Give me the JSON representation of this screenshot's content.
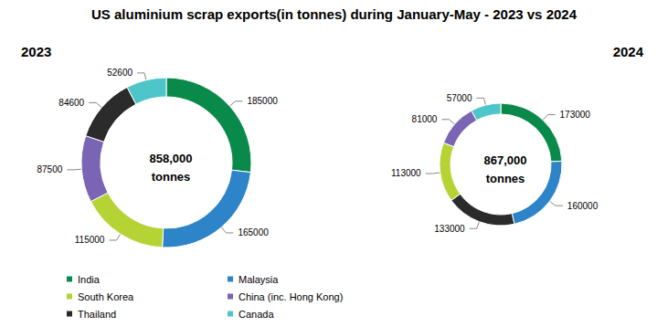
{
  "title": "US aluminium scrap exports(in tonnes) during January-May - 2023 vs 2024",
  "chart_data": [
    {
      "type": "donut",
      "title": "2023",
      "annotations": [
        "858,000\ntonnes"
      ],
      "categories": [
        "India",
        "Malaysia",
        "South Korea",
        "China (inc. Hong Kong)",
        "Thailand",
        "Canada"
      ],
      "values": [
        185000,
        165000,
        115000,
        87500,
        84600,
        52600
      ],
      "colors": [
        "#0a8a4a",
        "#2e84c9",
        "#b5d334",
        "#7a65b5",
        "#2b2b2b",
        "#4ec5c9"
      ],
      "data_labels": true,
      "legend": "bottom left"
    },
    {
      "type": "donut",
      "title": "2024",
      "annotations": [
        "867,000\ntonnes"
      ],
      "categories": [
        "India",
        "Malaysia",
        "Thailand",
        "South Korea",
        "China (inc. Hong Kong)",
        "Canada"
      ],
      "values": [
        173000,
        160000,
        133000,
        113000,
        81000,
        57000
      ],
      "colors": [
        "#0a8a4a",
        "#2e84c9",
        "#2b2b2b",
        "#b5d334",
        "#7a65b5",
        "#4ec5c9"
      ],
      "data_labels": true,
      "legend": "bottom left"
    }
  ]
}
